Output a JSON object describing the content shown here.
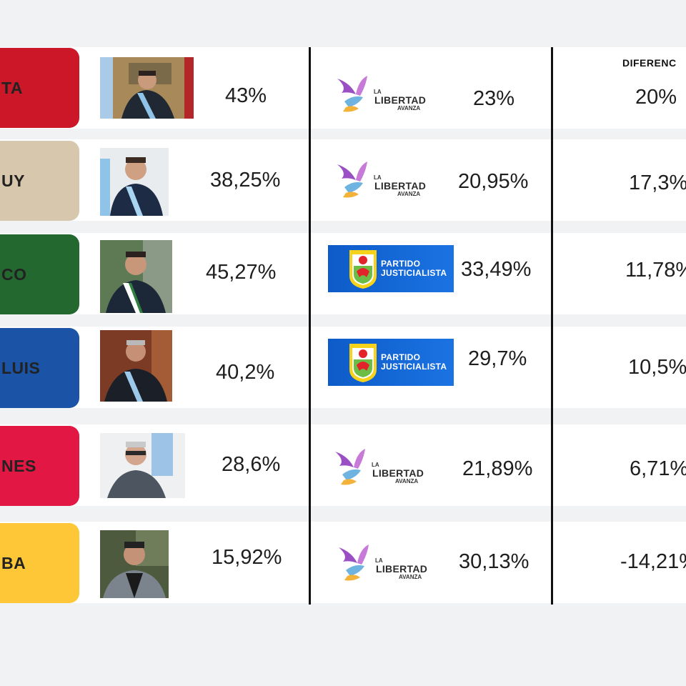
{
  "header": {
    "difference_label": "DIFERENC"
  },
  "colors": {
    "page_bg": "#f1f2f4",
    "row_bg": "#ffffff",
    "divider": "#111111",
    "lla_purple": "#9a4fc4",
    "pj_blue": "#1468d8"
  },
  "rows": [
    {
      "province": "TA",
      "province_color": "#cb1728",
      "governor_pct": "43%",
      "opponent_party": "La Libertad Avanza",
      "opponent_pct": "23%",
      "difference": "20%"
    },
    {
      "province": "UY",
      "province_color": "#d6c7ad",
      "governor_pct": "38,25%",
      "opponent_party": "La Libertad Avanza",
      "opponent_pct": "20,95%",
      "difference": "17,3%"
    },
    {
      "province": "CO",
      "province_color": "#23692f",
      "governor_pct": "45,27%",
      "opponent_party": "Partido Justicialista",
      "opponent_pct": "33,49%",
      "difference": "11,78%"
    },
    {
      "province": "LUIS",
      "province_color": "#1b54a7",
      "governor_pct": "40,2%",
      "opponent_party": "Partido Justicialista",
      "opponent_pct": "29,7%",
      "difference": "10,5%"
    },
    {
      "province": "NES",
      "province_color": "#e31743",
      "governor_pct": "28,6%",
      "opponent_party": "La Libertad Avanza",
      "opponent_pct": "21,89%",
      "difference": "6,71%"
    },
    {
      "province": "BA",
      "province_color": "#fdc737",
      "governor_pct": "15,92%",
      "opponent_party": "La Libertad Avanza",
      "opponent_pct": "30,13%",
      "difference": "-14,21%"
    }
  ],
  "logos": {
    "lla": {
      "line1": "LA",
      "line2": "LIBERTAD",
      "line3": "AVANZA"
    },
    "pj": {
      "line1": "PARTIDO",
      "line2": "JUSTICIALISTA"
    }
  }
}
